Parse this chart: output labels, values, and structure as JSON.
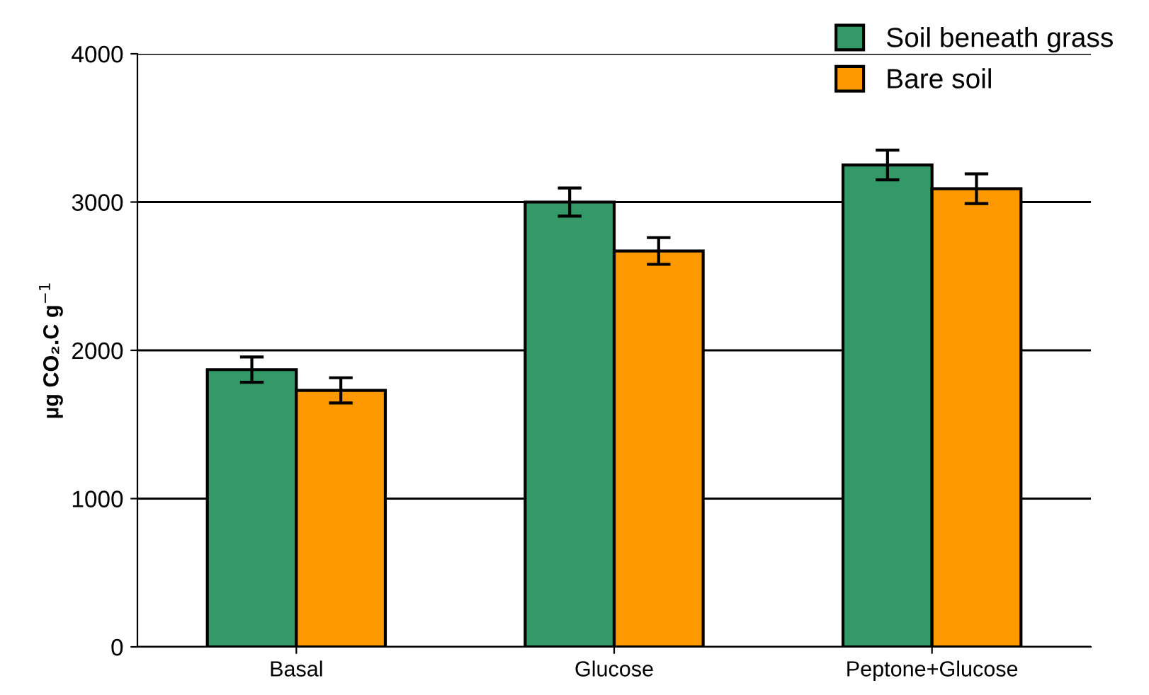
{
  "chart_data": {
    "type": "bar",
    "ylabel": "µg CO₂.C g$^{−1}$",
    "categories": [
      "Basal",
      "Glucose",
      "Peptone+Glucose"
    ],
    "series": [
      {
        "name": "Soil beneath grass",
        "color": "#339966",
        "values": [
          1870,
          3000,
          3250
        ],
        "errors": [
          85,
          95,
          100
        ]
      },
      {
        "name": "Bare soil",
        "color": "#ff9900",
        "values": [
          1730,
          2670,
          3090
        ],
        "errors": [
          85,
          90,
          100
        ]
      }
    ],
    "ylim": [
      0,
      4000
    ],
    "yticks": [
      0,
      1000,
      2000,
      3000,
      4000
    ],
    "grid": "y",
    "legend": "top right"
  }
}
